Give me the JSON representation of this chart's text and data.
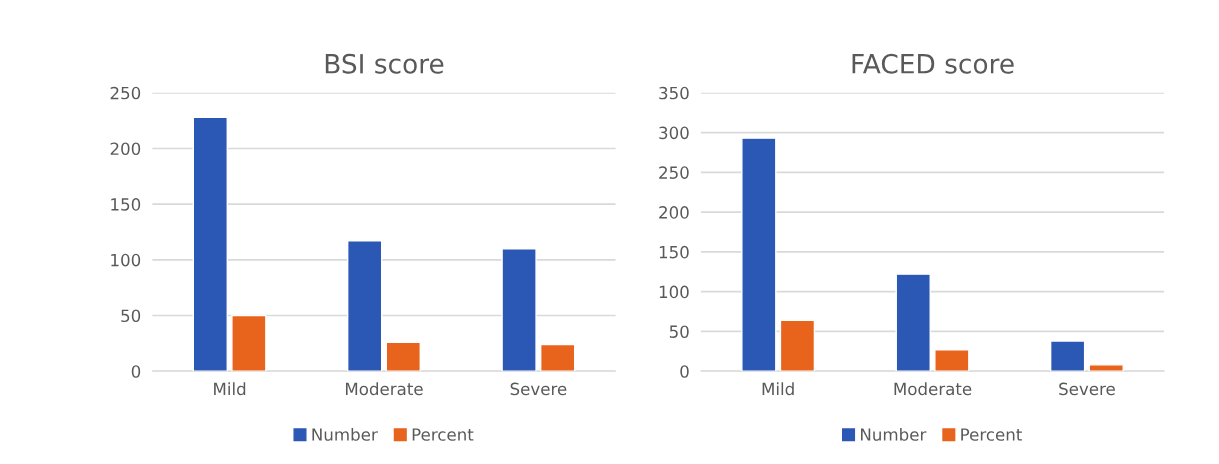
{
  "chart_data": [
    {
      "type": "bar",
      "title": "BSI score",
      "categories": [
        "Mild",
        "Moderate",
        "Severe"
      ],
      "series": [
        {
          "name": "Number",
          "color": "#2b57b5",
          "values": [
            228,
            117,
            110
          ]
        },
        {
          "name": "Percent",
          "color": "#e8631c",
          "values": [
            50,
            26,
            24
          ]
        }
      ],
      "ylim": [
        0,
        250
      ],
      "yticks": [
        0,
        50,
        100,
        150,
        200,
        250
      ],
      "grid": "y",
      "legend": "bottom"
    },
    {
      "type": "bar",
      "title": "FACED score",
      "categories": [
        "Mild",
        "Moderate",
        "Severe"
      ],
      "series": [
        {
          "name": "Number",
          "color": "#2b57b5",
          "values": [
            293,
            122,
            38
          ]
        },
        {
          "name": "Percent",
          "color": "#e8631c",
          "values": [
            64,
            27,
            8
          ]
        }
      ],
      "ylim": [
        0,
        350
      ],
      "yticks": [
        0,
        50,
        100,
        150,
        200,
        250,
        300,
        350
      ],
      "grid": "y",
      "legend": "bottom"
    }
  ]
}
